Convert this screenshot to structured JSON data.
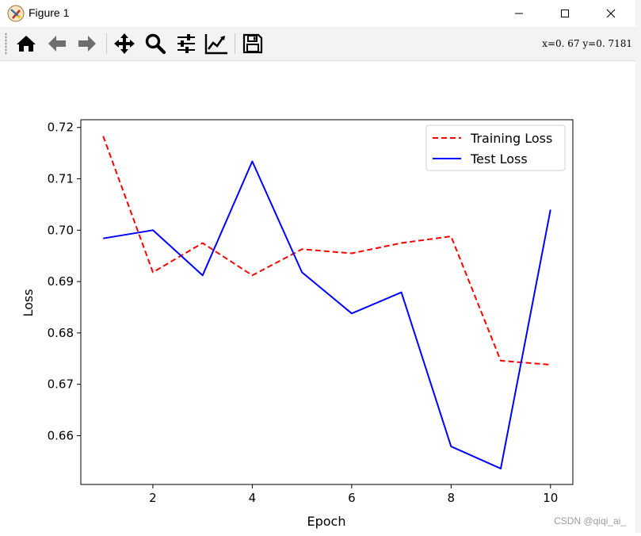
{
  "window": {
    "title": "Figure 1"
  },
  "toolbar": {
    "coords_readout": "x=0. 67  y=0. 7181",
    "tools": [
      "home-icon",
      "back-icon",
      "forward-icon",
      "pan-icon",
      "zoom-icon",
      "configure-subplots-icon",
      "edit-axis-icon",
      "save-icon"
    ]
  },
  "watermark": "CSDN @qiqi_ai_",
  "chart_data": {
    "type": "line",
    "xlabel": "Epoch",
    "ylabel": "Loss",
    "xlim": [
      0.55,
      10.45
    ],
    "ylim": [
      0.6505,
      0.7215
    ],
    "x_ticks": [
      2,
      4,
      6,
      8,
      10
    ],
    "y_ticks": [
      0.66,
      0.67,
      0.68,
      0.69,
      0.7,
      0.71,
      0.72
    ],
    "y_tick_labels": [
      "0.66",
      "0.67",
      "0.68",
      "0.69",
      "0.70",
      "0.71",
      "0.72"
    ],
    "grid": false,
    "legend_position": "top-right",
    "x": [
      1,
      2,
      3,
      4,
      5,
      6,
      7,
      8,
      9,
      10
    ],
    "series": [
      {
        "name": "Training Loss",
        "color": "#ff0000",
        "style": "dashed",
        "values": [
          0.7183,
          0.6918,
          0.6975,
          0.6912,
          0.6963,
          0.6955,
          0.6975,
          0.6988,
          0.6746,
          0.6738
        ]
      },
      {
        "name": "Test Loss",
        "color": "#0000ff",
        "style": "solid",
        "values": [
          0.6984,
          0.7,
          0.6912,
          0.7134,
          0.6918,
          0.6838,
          0.6879,
          0.6579,
          0.6536,
          0.704
        ]
      }
    ]
  }
}
